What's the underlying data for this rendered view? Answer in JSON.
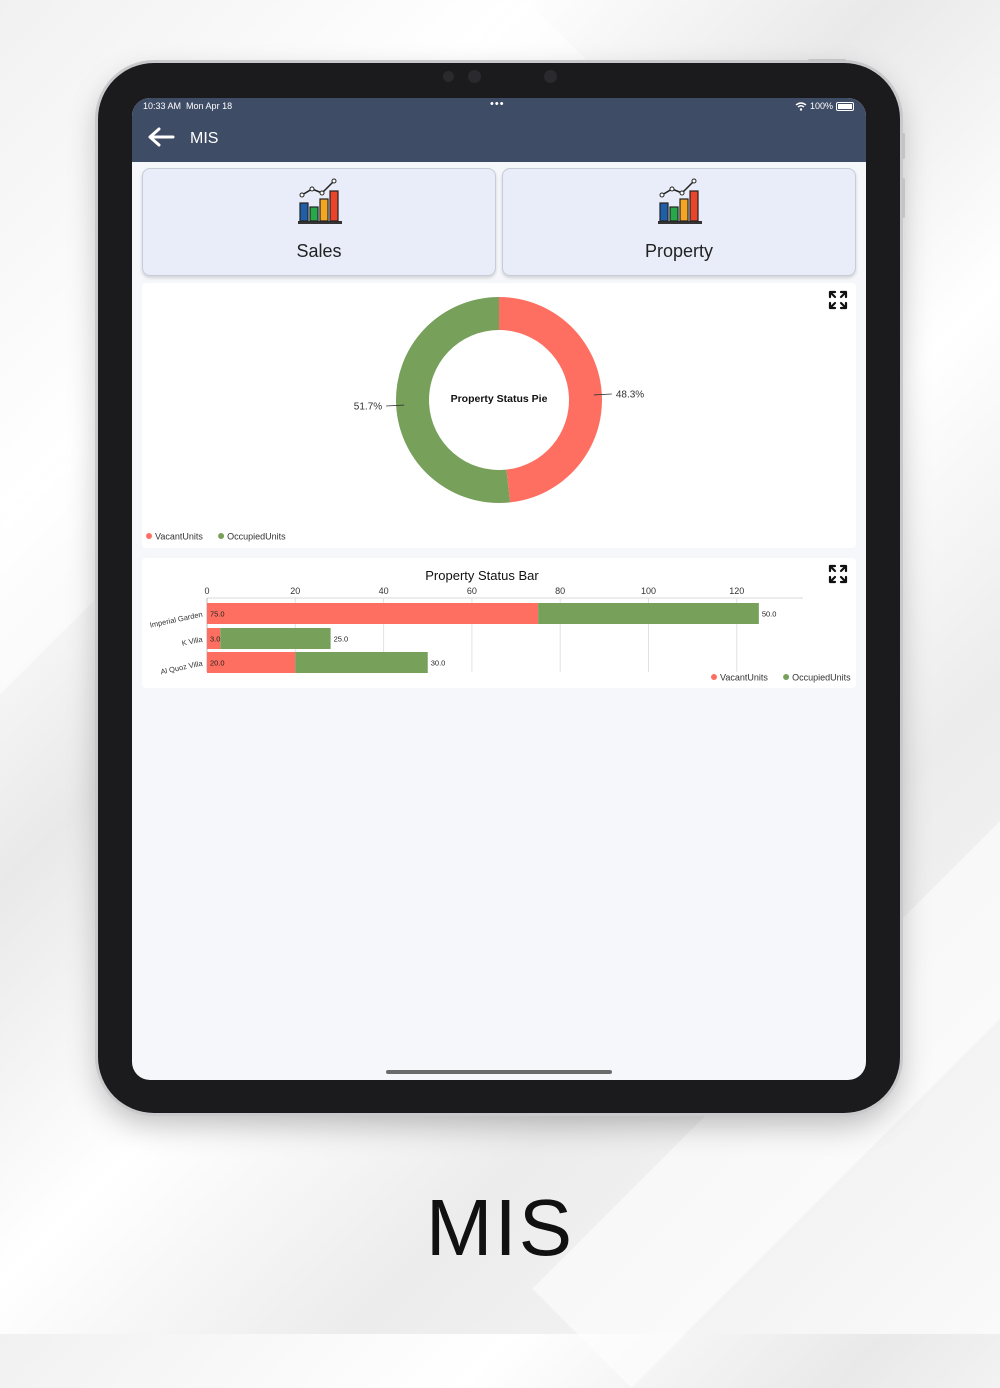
{
  "status_bar": {
    "time": "10:33 AM",
    "date": "Mon Apr 18",
    "dots": "•••",
    "battery": "100%"
  },
  "header": {
    "title": "MIS"
  },
  "tiles": [
    {
      "label": "Sales"
    },
    {
      "label": "Property"
    }
  ],
  "icons": {
    "back": "arrow-left-icon",
    "tile": "bar-chart-icon",
    "expand": "expand-icon"
  },
  "colors": {
    "header": "#3f4c66",
    "vacant": "#ff6f61",
    "occupied": "#77a05a"
  },
  "chart_data": [
    {
      "type": "pie",
      "title": "Property Status Pie",
      "slices": [
        {
          "name": "VacantUnits",
          "value": 48.3,
          "label": "48.3%"
        },
        {
          "name": "OccupiedUnits",
          "value": 51.7,
          "label": "51.7%"
        }
      ],
      "legend": [
        "VacantUnits",
        "OccupiedUnits"
      ],
      "legend_position": "bottom-left"
    },
    {
      "type": "bar",
      "orientation": "horizontal",
      "stacked": true,
      "title": "Property Status Bar",
      "categories": [
        "Imperial Garden",
        "K Villa",
        "Al Quoz Villa"
      ],
      "series": [
        {
          "name": "VacantUnits",
          "values": [
            75.0,
            3.0,
            20.0
          ],
          "labels": [
            "75.0",
            "3.0",
            "20.0"
          ]
        },
        {
          "name": "OccupiedUnits",
          "values": [
            50.0,
            25.0,
            30.0
          ],
          "labels": [
            "50.0",
            "25.0",
            "30.0"
          ]
        }
      ],
      "x_ticks": [
        "0",
        "20",
        "40",
        "60",
        "80",
        "100",
        "120"
      ],
      "xlim": [
        0,
        135
      ],
      "grid": true,
      "legend": [
        "VacantUnits",
        "OccupiedUnits"
      ],
      "legend_position": "bottom-right"
    }
  ],
  "caption": "MIS"
}
